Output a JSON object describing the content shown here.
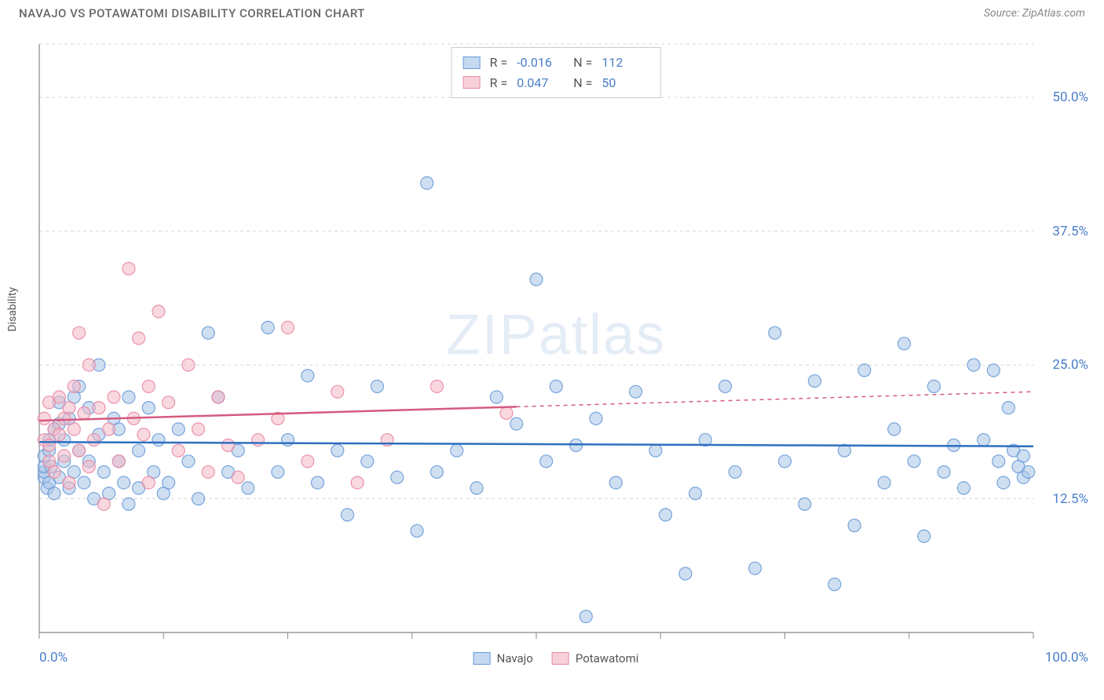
{
  "header": {
    "title": "NAVAJO VS POTAWATOMI DISABILITY CORRELATION CHART",
    "source_label": "Source: ZipAtlas.com"
  },
  "watermark": {
    "zip": "ZIP",
    "atlas": "atlas"
  },
  "chart": {
    "type": "scatter",
    "ylabel": "Disability",
    "xlim": [
      0,
      100
    ],
    "ylim": [
      0,
      55
    ],
    "x_axis_labels": {
      "left": "0.0%",
      "right": "100.0%"
    },
    "y_ticks": [
      12.5,
      25.0,
      37.5,
      50.0
    ],
    "y_tick_labels": [
      "12.5%",
      "25.0%",
      "37.5%",
      "50.0%"
    ],
    "x_ticks": [
      0,
      12.5,
      25,
      37.5,
      50,
      62.5,
      75,
      87.5,
      100
    ],
    "grid_color": "#d8d8d8",
    "axis_color": "#888888",
    "background_color": "#ffffff",
    "marker_radius": 8,
    "marker_opacity": 0.55,
    "marker_stroke_opacity": 0.9,
    "series": {
      "navajo": {
        "label": "Navajo",
        "fill_color": "#a8c5e8",
        "stroke_color": "#6a9bd8",
        "swatch_fill": "#c5d9f0",
        "swatch_border": "#6a9bd8",
        "R": "-0.016",
        "N": "112",
        "trend": {
          "y_at_x0": 17.8,
          "y_at_x100": 17.4,
          "color": "#2f6fc0",
          "width": 2.5
        },
        "points": [
          [
            0.5,
            14.5
          ],
          [
            0.5,
            15
          ],
          [
            0.5,
            15.5
          ],
          [
            0.5,
            16.5
          ],
          [
            0.8,
            13.5
          ],
          [
            1,
            14
          ],
          [
            1,
            17
          ],
          [
            1,
            18
          ],
          [
            1.2,
            15.5
          ],
          [
            1.5,
            13
          ],
          [
            1.5,
            19
          ],
          [
            2,
            14.5
          ],
          [
            2,
            19.5
          ],
          [
            2,
            21.5
          ],
          [
            2.5,
            16
          ],
          [
            2.5,
            18
          ],
          [
            3,
            13.5
          ],
          [
            3,
            20
          ],
          [
            3.5,
            15
          ],
          [
            3.5,
            22
          ],
          [
            4,
            17
          ],
          [
            4,
            23
          ],
          [
            4.5,
            14
          ],
          [
            5,
            16
          ],
          [
            5,
            21
          ],
          [
            5.5,
            12.5
          ],
          [
            6,
            18.5
          ],
          [
            6,
            25
          ],
          [
            6.5,
            15
          ],
          [
            7,
            13
          ],
          [
            7.5,
            20
          ],
          [
            8,
            16
          ],
          [
            8,
            19
          ],
          [
            8.5,
            14
          ],
          [
            9,
            22
          ],
          [
            9,
            12
          ],
          [
            10,
            17
          ],
          [
            10,
            13.5
          ],
          [
            11,
            21
          ],
          [
            11.5,
            15
          ],
          [
            12,
            18
          ],
          [
            12.5,
            13
          ],
          [
            13,
            14
          ],
          [
            14,
            19
          ],
          [
            15,
            16
          ],
          [
            16,
            12.5
          ],
          [
            17,
            28
          ],
          [
            18,
            22
          ],
          [
            19,
            15
          ],
          [
            20,
            17
          ],
          [
            21,
            13.5
          ],
          [
            23,
            28.5
          ],
          [
            24,
            15
          ],
          [
            25,
            18
          ],
          [
            27,
            24
          ],
          [
            28,
            14
          ],
          [
            30,
            17
          ],
          [
            31,
            11
          ],
          [
            33,
            16
          ],
          [
            34,
            23
          ],
          [
            36,
            14.5
          ],
          [
            38,
            9.5
          ],
          [
            39,
            42
          ],
          [
            40,
            15
          ],
          [
            42,
            17
          ],
          [
            44,
            13.5
          ],
          [
            46,
            22
          ],
          [
            48,
            19.5
          ],
          [
            50,
            33
          ],
          [
            51,
            16
          ],
          [
            52,
            23
          ],
          [
            54,
            17.5
          ],
          [
            55,
            1.5
          ],
          [
            56,
            20
          ],
          [
            58,
            14
          ],
          [
            60,
            22.5
          ],
          [
            62,
            17
          ],
          [
            63,
            11
          ],
          [
            65,
            5.5
          ],
          [
            66,
            13
          ],
          [
            67,
            18
          ],
          [
            69,
            23
          ],
          [
            70,
            15
          ],
          [
            72,
            6
          ],
          [
            74,
            28
          ],
          [
            75,
            16
          ],
          [
            77,
            12
          ],
          [
            78,
            23.5
          ],
          [
            80,
            4.5
          ],
          [
            81,
            17
          ],
          [
            82,
            10
          ],
          [
            83,
            24.5
          ],
          [
            85,
            14
          ],
          [
            86,
            19
          ],
          [
            87,
            27
          ],
          [
            88,
            16
          ],
          [
            89,
            9
          ],
          [
            90,
            23
          ],
          [
            91,
            15
          ],
          [
            92,
            17.5
          ],
          [
            93,
            13.5
          ],
          [
            94,
            25
          ],
          [
            95,
            18
          ],
          [
            96,
            24.5
          ],
          [
            96.5,
            16
          ],
          [
            97,
            14
          ],
          [
            97.5,
            21
          ],
          [
            98,
            17
          ],
          [
            98.5,
            15.5
          ],
          [
            99,
            14.5
          ],
          [
            99,
            16.5
          ],
          [
            99.5,
            15
          ]
        ]
      },
      "potawatomi": {
        "label": "Potawatomi",
        "fill_color": "#f4b8c6",
        "stroke_color": "#e88aa3",
        "swatch_fill": "#f7d0da",
        "swatch_border": "#e88aa3",
        "R": "0.047",
        "N": "50",
        "trend": {
          "y_at_x0": 19.8,
          "y_at_x100": 22.5,
          "solid_until_x": 48,
          "color": "#d65a7e",
          "width": 2.5
        },
        "points": [
          [
            0.5,
            18
          ],
          [
            0.5,
            20
          ],
          [
            1,
            16
          ],
          [
            1,
            21.5
          ],
          [
            1,
            17.5
          ],
          [
            1.5,
            19
          ],
          [
            1.5,
            15
          ],
          [
            2,
            22
          ],
          [
            2,
            18.5
          ],
          [
            2.5,
            16.5
          ],
          [
            2.5,
            20
          ],
          [
            3,
            14
          ],
          [
            3,
            21
          ],
          [
            3.5,
            19
          ],
          [
            3.5,
            23
          ],
          [
            4,
            17
          ],
          [
            4,
            28
          ],
          [
            4.5,
            20.5
          ],
          [
            5,
            15.5
          ],
          [
            5,
            25
          ],
          [
            5.5,
            18
          ],
          [
            6,
            21
          ],
          [
            6.5,
            12
          ],
          [
            7,
            19
          ],
          [
            7.5,
            22
          ],
          [
            8,
            16
          ],
          [
            9,
            34
          ],
          [
            9.5,
            20
          ],
          [
            10,
            27.5
          ],
          [
            10.5,
            18.5
          ],
          [
            11,
            23
          ],
          [
            11,
            14
          ],
          [
            12,
            30
          ],
          [
            13,
            21.5
          ],
          [
            14,
            17
          ],
          [
            15,
            25
          ],
          [
            16,
            19
          ],
          [
            17,
            15
          ],
          [
            18,
            22
          ],
          [
            19,
            17.5
          ],
          [
            20,
            14.5
          ],
          [
            22,
            18
          ],
          [
            24,
            20
          ],
          [
            25,
            28.5
          ],
          [
            27,
            16
          ],
          [
            30,
            22.5
          ],
          [
            32,
            14
          ],
          [
            35,
            18
          ],
          [
            40,
            23
          ],
          [
            47,
            20.5
          ]
        ]
      }
    }
  },
  "legend_bottom": {
    "navajo": "Navajo",
    "potawatomi": "Potawatomi"
  }
}
